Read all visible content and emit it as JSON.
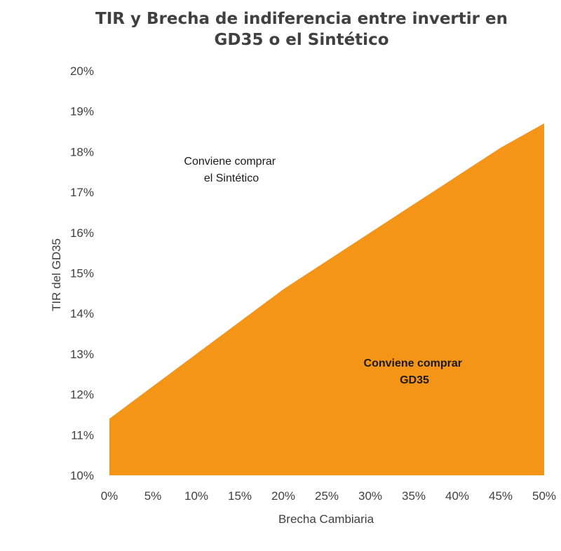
{
  "chart_data": {
    "type": "area",
    "title": [
      "TIR y Brecha de indiferencia entre invertir en",
      "GD35 o el Sintético"
    ],
    "xlabel": "Brecha Cambiaria",
    "ylabel": "TIR del GD35",
    "x": [
      0,
      5,
      10,
      15,
      20,
      25,
      30,
      35,
      40,
      45,
      50
    ],
    "x_tick_labels": [
      "0%",
      "5%",
      "10%",
      "15%",
      "20%",
      "25%",
      "30%",
      "35%",
      "40%",
      "45%",
      "50%"
    ],
    "y_tick_labels": [
      "10%",
      "11%",
      "12%",
      "13%",
      "14%",
      "15%",
      "16%",
      "17%",
      "18%",
      "19%",
      "20%"
    ],
    "xlim": [
      0,
      50
    ],
    "ylim": [
      10,
      20
    ],
    "y_ticks": [
      10,
      11,
      12,
      13,
      14,
      15,
      16,
      17,
      18,
      19,
      20
    ],
    "series": [
      {
        "values": [
          11.4,
          12.2,
          13.0,
          13.8,
          14.6,
          15.3,
          16.0,
          16.7,
          17.4,
          18.1,
          18.7
        ],
        "color": "#F59518"
      }
    ],
    "grid": false,
    "annotations": [
      {
        "lines": [
          "Conviene comprar",
          "el Sintético"
        ],
        "bold": false
      },
      {
        "lines": [
          "Conviene comprar",
          "GD35"
        ],
        "bold": true
      }
    ]
  }
}
